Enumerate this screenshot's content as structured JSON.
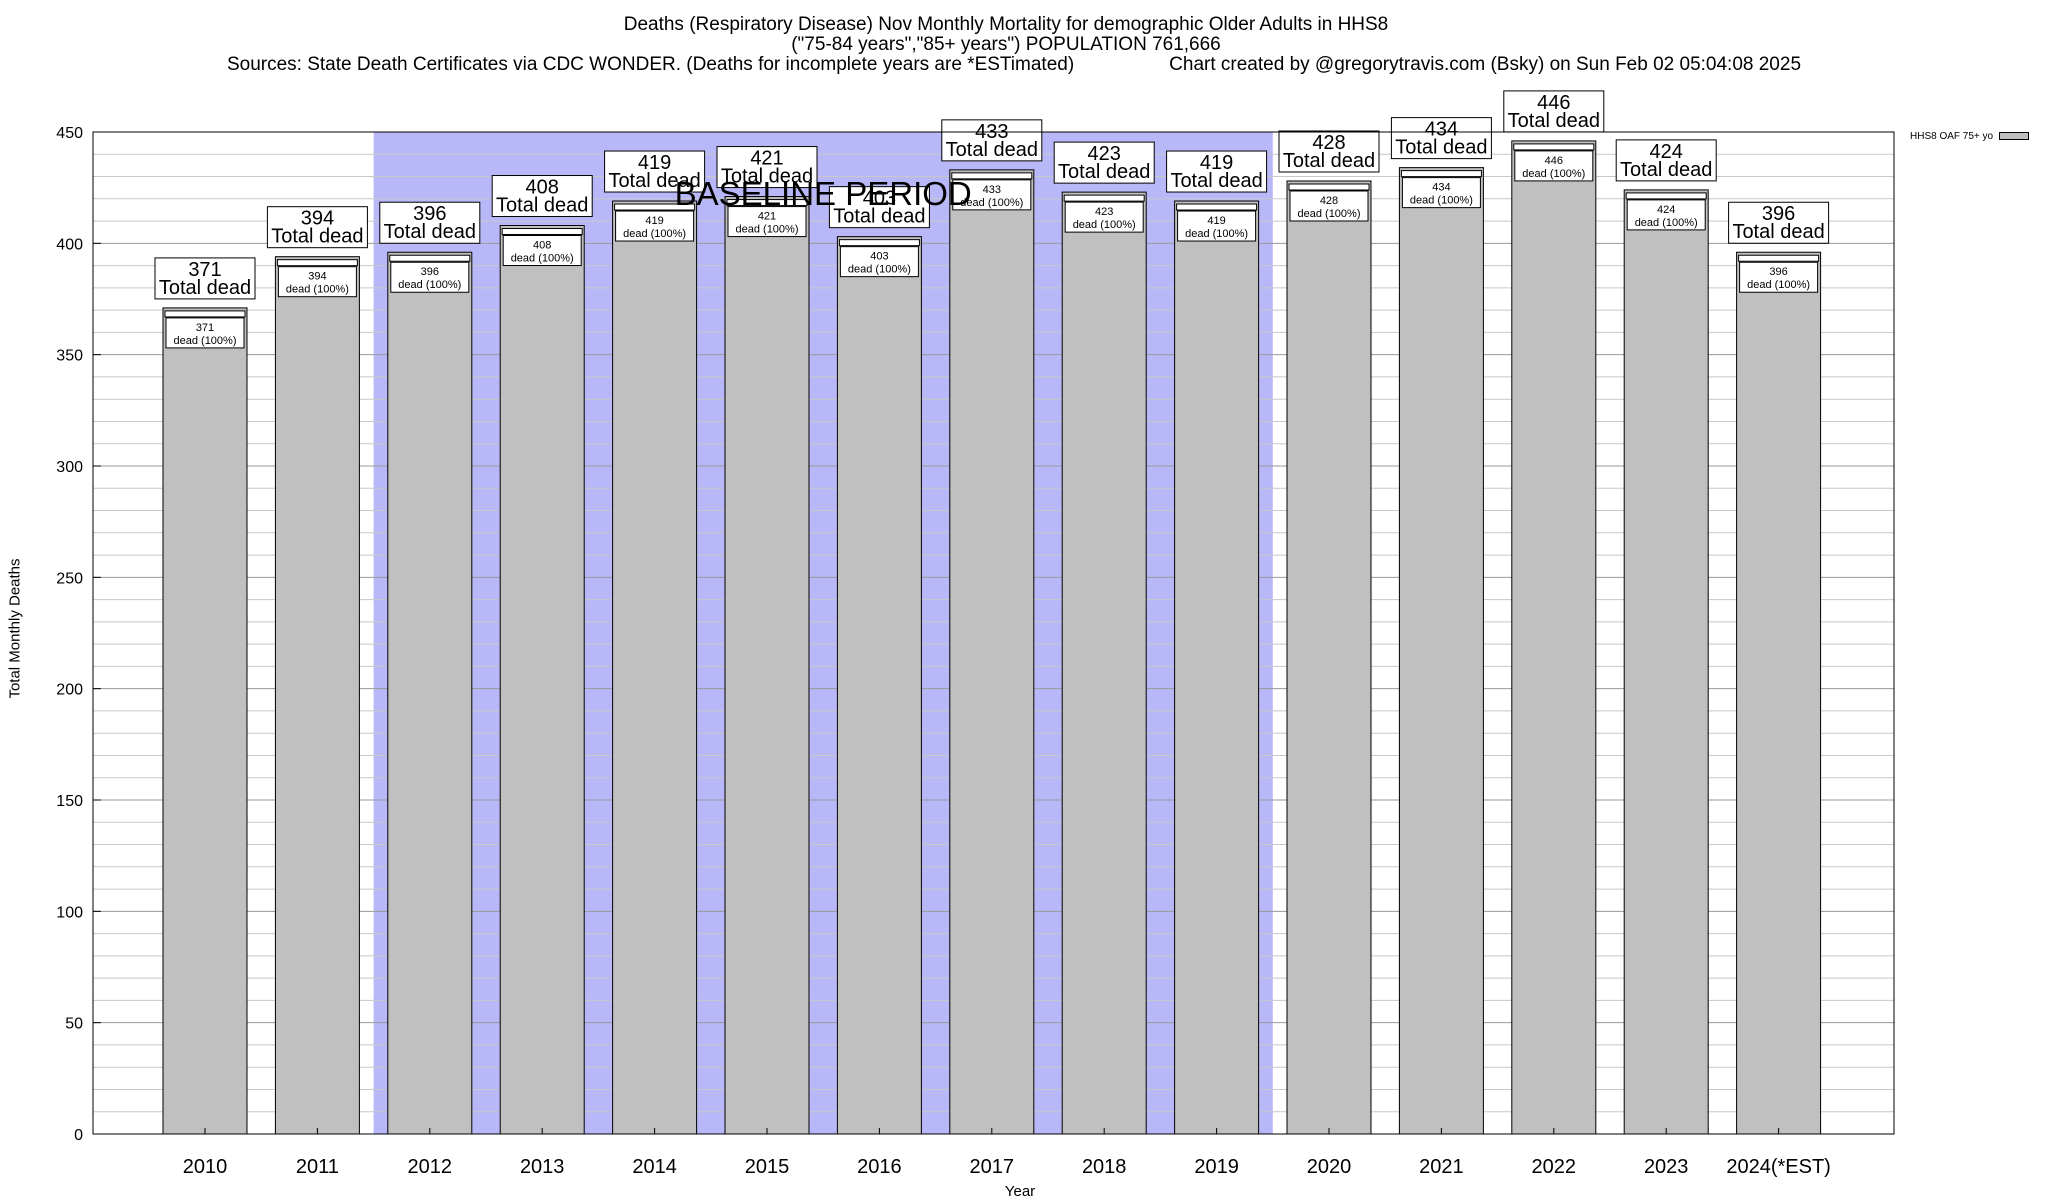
{
  "chart_data": {
    "type": "bar",
    "title": "Deaths (Respiratory Disease) Nov Monthly Mortality for demographic Older Adults in HHS8",
    "subtitle": "(\"75-84 years\",\"85+ years\") POPULATION 761,666",
    "sources": "Sources: State Death Certificates via CDC WONDER. (Deaths for incomplete years are *ESTimated)",
    "credit": "Chart created by @gregorytravis.com (Bsky) on Sun Feb 02 05:04:08 2025",
    "xlabel": "Year",
    "ylabel": "Total Monthly Deaths",
    "ylim": [
      0,
      450
    ],
    "yticks": [
      0,
      50,
      100,
      150,
      200,
      250,
      300,
      350,
      400,
      450
    ],
    "categories": [
      "2010",
      "2011",
      "2012",
      "2013",
      "2014",
      "2015",
      "2016",
      "2017",
      "2018",
      "2019",
      "2020",
      "2021",
      "2022",
      "2023",
      "2024(*EST)"
    ],
    "series": [
      {
        "name": "HHS8 OAF 75+ yo",
        "color": "#c0c0c0",
        "values": [
          371,
          394,
          396,
          408,
          419,
          421,
          403,
          433,
          423,
          419,
          428,
          434,
          446,
          424,
          396
        ]
      }
    ],
    "top_label_suffix": "Total dead",
    "inner_label_suffix": "dead (100%)",
    "baseline": {
      "label": "BASELINE PERIOD",
      "start": "2012",
      "end": "2019",
      "color": "#b8b8f8"
    },
    "grid": true,
    "legend_position": "top-right"
  }
}
